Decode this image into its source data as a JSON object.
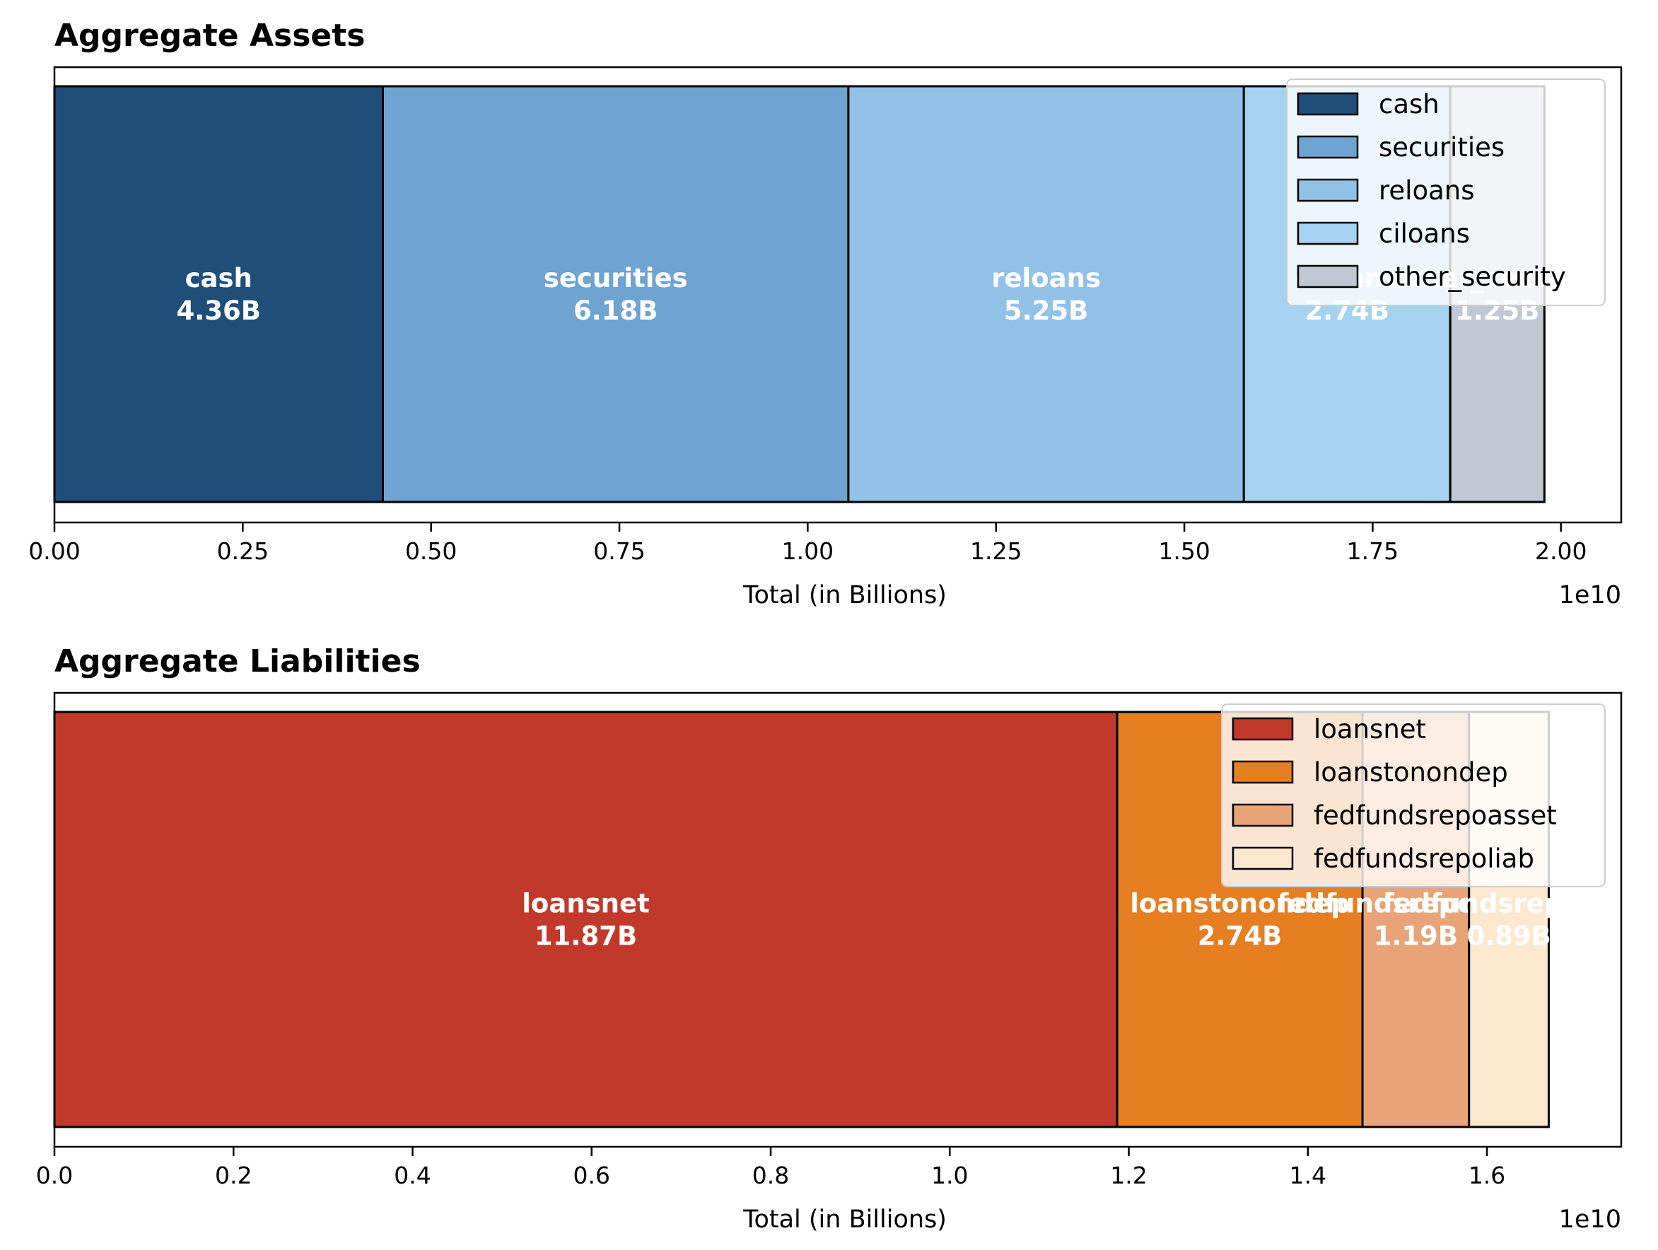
{
  "chart_data": [
    {
      "type": "bar",
      "orientation": "horizontal-stacked",
      "title": "Aggregate Assets",
      "xlabel": "Total (in Billions)",
      "ylabel": "",
      "x_offset_label": "1e10",
      "xlim": [
        0,
        20800000000.0
      ],
      "xticks": [
        0,
        2500000000.0,
        5000000000.0,
        7500000000.0,
        10000000000.0,
        12500000000.0,
        15000000000.0,
        17500000000.0,
        20000000000.0
      ],
      "xtick_labels": [
        "0.00",
        "0.25",
        "0.50",
        "0.75",
        "1.00",
        "1.25",
        "1.50",
        "1.75",
        "2.00"
      ],
      "legend_position": "upper right",
      "series": [
        {
          "name": "cash",
          "value": 4360000000.0,
          "label": "4.36B",
          "color": "#1f4e79"
        },
        {
          "name": "securities",
          "value": 6180000000.0,
          "label": "6.18B",
          "color": "#6fa3d0"
        },
        {
          "name": "reloans",
          "value": 5250000000.0,
          "label": "5.25B",
          "color": "#91c1e6"
        },
        {
          "name": "ciloans",
          "value": 2740000000.0,
          "label": "2.74B",
          "color": "#a4d2ef"
        },
        {
          "name": "other_security",
          "value": 1250000000.0,
          "label": "1.25B",
          "color": "#c0c8d4"
        }
      ]
    },
    {
      "type": "bar",
      "orientation": "horizontal-stacked",
      "title": "Aggregate Liabilities",
      "xlabel": "Total (in Billions)",
      "ylabel": "",
      "x_offset_label": "1e10",
      "xlim": [
        0,
        17500000000.0
      ],
      "xticks": [
        0,
        2000000000.0,
        4000000000.0,
        6000000000.0,
        8000000000.0,
        10000000000.0,
        12000000000.0,
        14000000000.0,
        16000000000.0
      ],
      "xtick_labels": [
        "0.0",
        "0.2",
        "0.4",
        "0.6",
        "0.8",
        "1.0",
        "1.2",
        "1.4",
        "1.6"
      ],
      "legend_position": "upper right",
      "series": [
        {
          "name": "loansnet",
          "value": 11870000000.0,
          "label": "11.87B",
          "color": "#c0392b"
        },
        {
          "name": "loanstonondep",
          "value": 2740000000.0,
          "label": "2.74B",
          "color": "#e67e22"
        },
        {
          "name": "fedfundsrepoasset",
          "value": 1190000000.0,
          "label": "1.19B",
          "color": "#e8a478"
        },
        {
          "name": "fedfundsrepoliab",
          "value": 890000000.0,
          "label": "0.89B",
          "color": "#fbe8cf"
        }
      ]
    }
  ]
}
